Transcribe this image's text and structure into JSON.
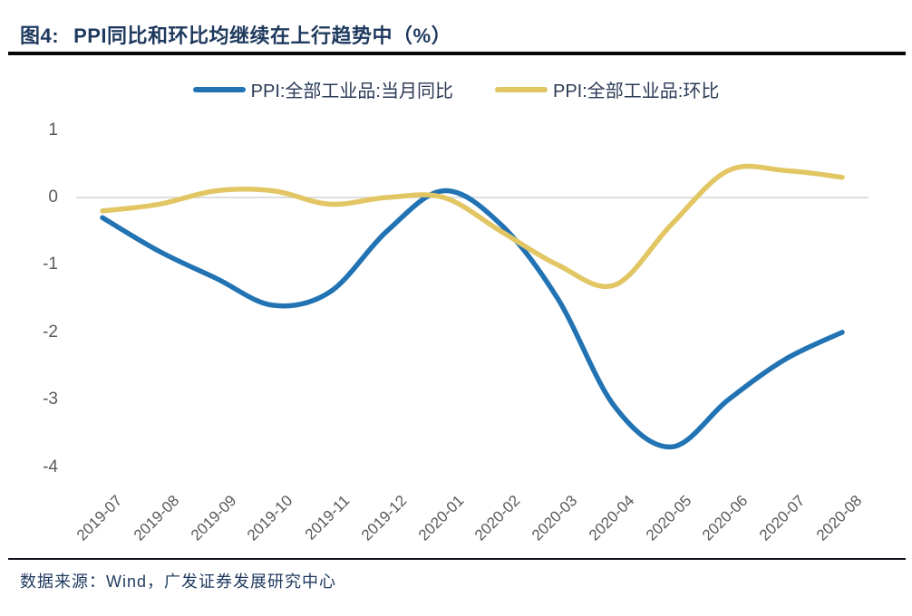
{
  "header": {
    "figure_label": "图4:",
    "title": "PPI同比和环比均继续在上行趋势中（%）"
  },
  "chart_data": {
    "type": "line",
    "title": "PPI同比和环比均继续在上行趋势中（%）",
    "unit": "%",
    "smooth": true,
    "grid": "zero-line-only",
    "legend_position": "top-center",
    "categories": [
      "2019-07",
      "2019-08",
      "2019-09",
      "2019-10",
      "2019-11",
      "2019-12",
      "2020-01",
      "2020-02",
      "2020-03",
      "2020-04",
      "2020-05",
      "2020-06",
      "2020-07",
      "2020-08"
    ],
    "series": [
      {
        "name": "PPI:全部工业品:当月同比",
        "color": "#2173b3",
        "values": [
          -0.3,
          -0.8,
          -1.2,
          -1.6,
          -1.4,
          -0.5,
          0.1,
          -0.4,
          -1.5,
          -3.1,
          -3.7,
          -3.0,
          -2.4,
          -2.0
        ]
      },
      {
        "name": "PPI:全部工业品:环比",
        "color": "#e2c664",
        "values": [
          -0.2,
          -0.1,
          0.1,
          0.1,
          -0.1,
          0.0,
          0.0,
          -0.5,
          -1.0,
          -1.3,
          -0.4,
          0.4,
          0.4,
          0.3
        ]
      }
    ],
    "y_ticks": [
      1,
      0,
      -1,
      -2,
      -3,
      -4
    ],
    "ylim": [
      -4,
      1
    ]
  },
  "footer": {
    "source_note": "数据来源：Wind，广发证券发展研究中心"
  },
  "colors": {
    "title_navy": "#1f3a5e",
    "axis_gray": "#595959",
    "zero_gridline": "#d4d4d4",
    "rule_black": "#060606"
  }
}
